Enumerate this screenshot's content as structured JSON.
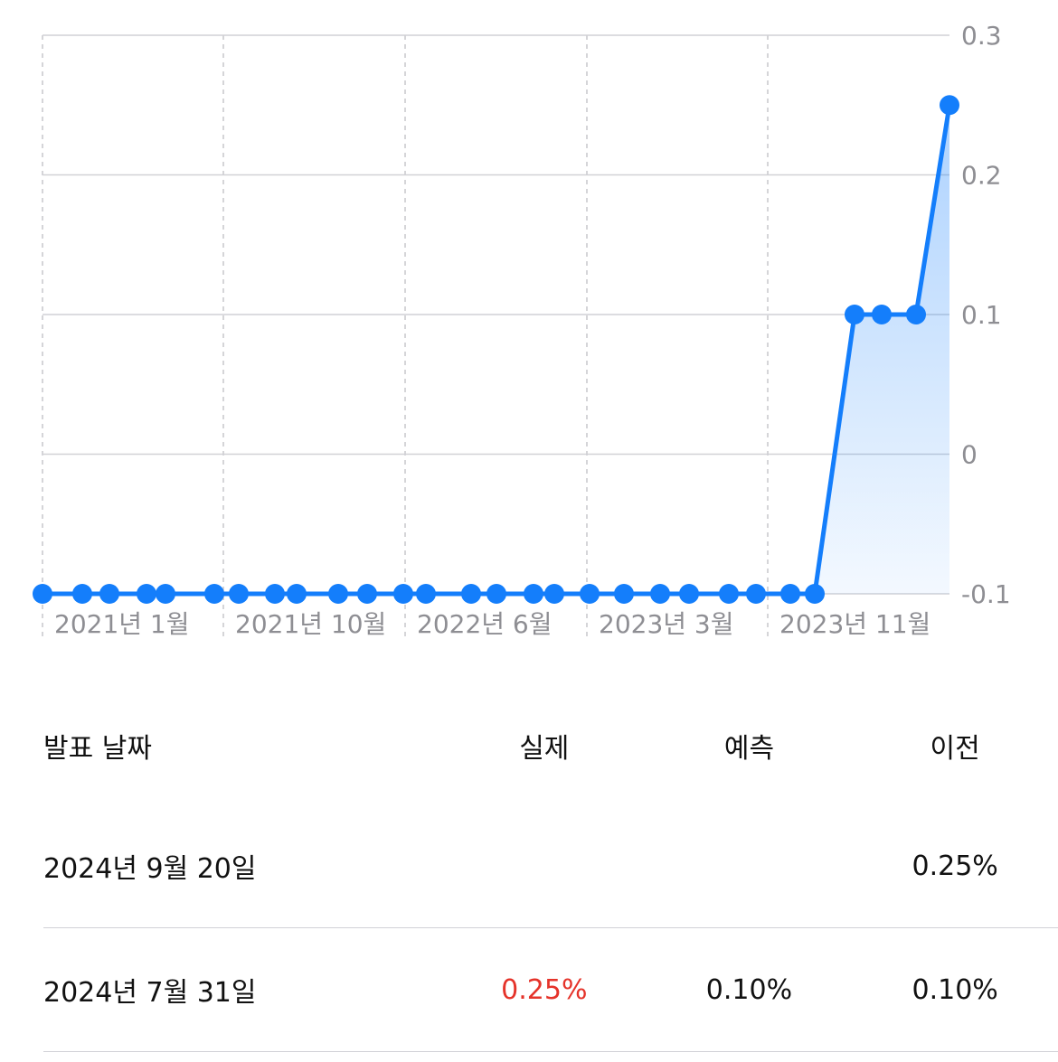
{
  "chart_data": {
    "type": "line",
    "yticks": [
      "0.3",
      "0.2",
      "0.1",
      "0",
      "-0.1"
    ],
    "ylim": [
      -0.1,
      0.3
    ],
    "xticks": [
      "2021년 1월",
      "2021년 10월",
      "2022년 6월",
      "2023년 3월",
      "2023년 11월"
    ],
    "grid": true,
    "fill_under_recent": true,
    "values": [
      -0.1,
      -0.1,
      -0.1,
      -0.1,
      -0.1,
      -0.1,
      -0.1,
      -0.1,
      -0.1,
      -0.1,
      -0.1,
      -0.1,
      -0.1,
      -0.1,
      -0.1,
      -0.1,
      -0.1,
      -0.1,
      -0.1,
      -0.1,
      -0.1,
      -0.1,
      -0.1,
      -0.1,
      -0.1,
      -0.1,
      -0.1,
      -0.1,
      0.1,
      0.1,
      0.1,
      0.25
    ],
    "colors": {
      "line": "#147efb",
      "fill": "#147efb",
      "grid": "#d1d1d6",
      "tick": "#8e8e93"
    }
  },
  "table": {
    "headers": {
      "date": "발표 날짜",
      "actual": "실제",
      "forecast": "예측",
      "previous": "이전"
    },
    "rows": [
      {
        "date": "2024년 9월 20일",
        "actual": "",
        "forecast": "",
        "previous": "0.25%"
      },
      {
        "date": "2024년 7월 31일",
        "actual": "0.25%",
        "forecast": "0.10%",
        "previous": "0.10%",
        "actual_color": "#e5332a"
      }
    ]
  }
}
